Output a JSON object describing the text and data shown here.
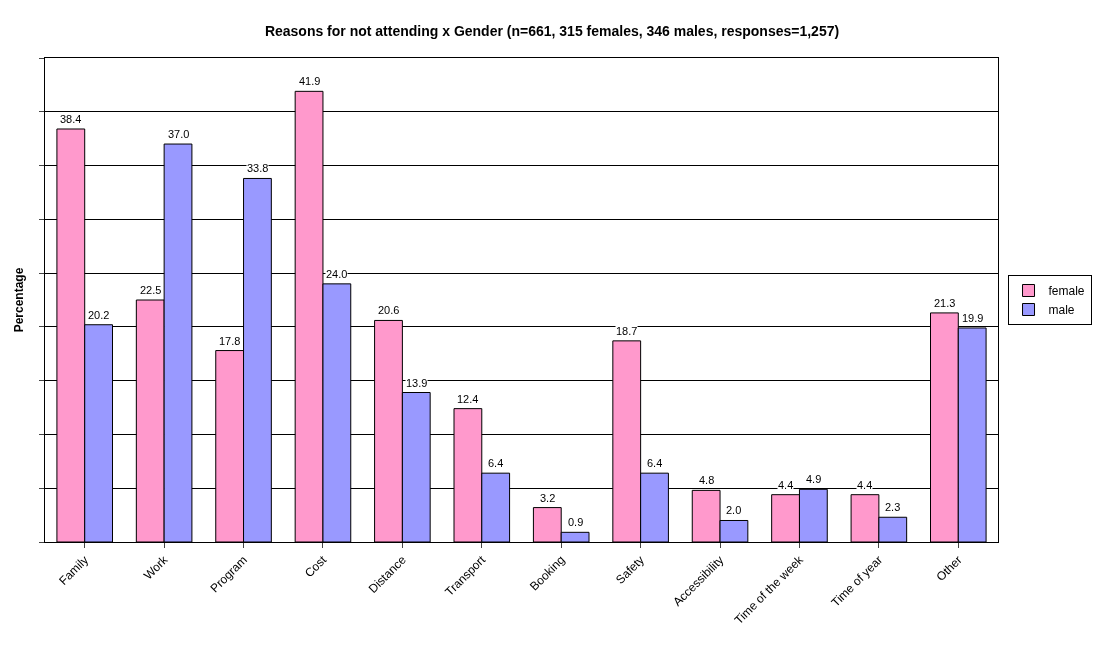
{
  "chart_data": {
    "type": "bar",
    "title": "Reasons for not attending x Gender (n=661, 315 females, 346 males, responses=1,257)",
    "ylabel": "Percentage",
    "categories": [
      "Family",
      "Work",
      "Program",
      "Cost",
      "Distance",
      "Transport",
      "Booking",
      "Safety",
      "Accessibility",
      "Time of the week",
      "Time of year",
      "Other"
    ],
    "series": [
      {
        "name": "female",
        "color": "#ff99cc",
        "values": [
          38.4,
          22.5,
          17.8,
          41.9,
          20.6,
          12.4,
          3.2,
          18.7,
          4.8,
          4.4,
          4.4,
          21.3
        ],
        "value_labels": [
          "38.4",
          "22.5",
          "17.8",
          "41.9",
          "20.6",
          "12.4",
          "3.2",
          "18.7",
          "4.8",
          "4.4",
          "4.4",
          "21.3"
        ]
      },
      {
        "name": "male",
        "color": "#9999ff",
        "values": [
          20.2,
          37.0,
          33.8,
          24.0,
          13.9,
          6.4,
          0.9,
          6.4,
          2.0,
          4.9,
          2.3,
          19.9
        ],
        "value_labels": [
          "20.2",
          "37.0",
          "33.8",
          "24.0",
          "13.9",
          "6.4",
          "0.9",
          "6.4",
          "2.0",
          "4.9",
          "2.3",
          "19.9"
        ]
      }
    ],
    "ylim": [
      0,
      45
    ],
    "yticks": [
      {
        "value": 0,
        "label": null
      },
      {
        "value": 5,
        "label": null
      },
      {
        "value": 10,
        "label": null
      },
      {
        "value": 15,
        "label": null
      },
      {
        "value": 20,
        "label": null
      },
      {
        "value": 25,
        "label": null
      },
      {
        "value": 30,
        "label": null
      },
      {
        "value": 35,
        "label": null
      },
      {
        "value": 40,
        "label": null
      },
      {
        "value": 45,
        "label": null
      }
    ],
    "tick_labels": "x",
    "grid": "y",
    "legend": "right"
  }
}
